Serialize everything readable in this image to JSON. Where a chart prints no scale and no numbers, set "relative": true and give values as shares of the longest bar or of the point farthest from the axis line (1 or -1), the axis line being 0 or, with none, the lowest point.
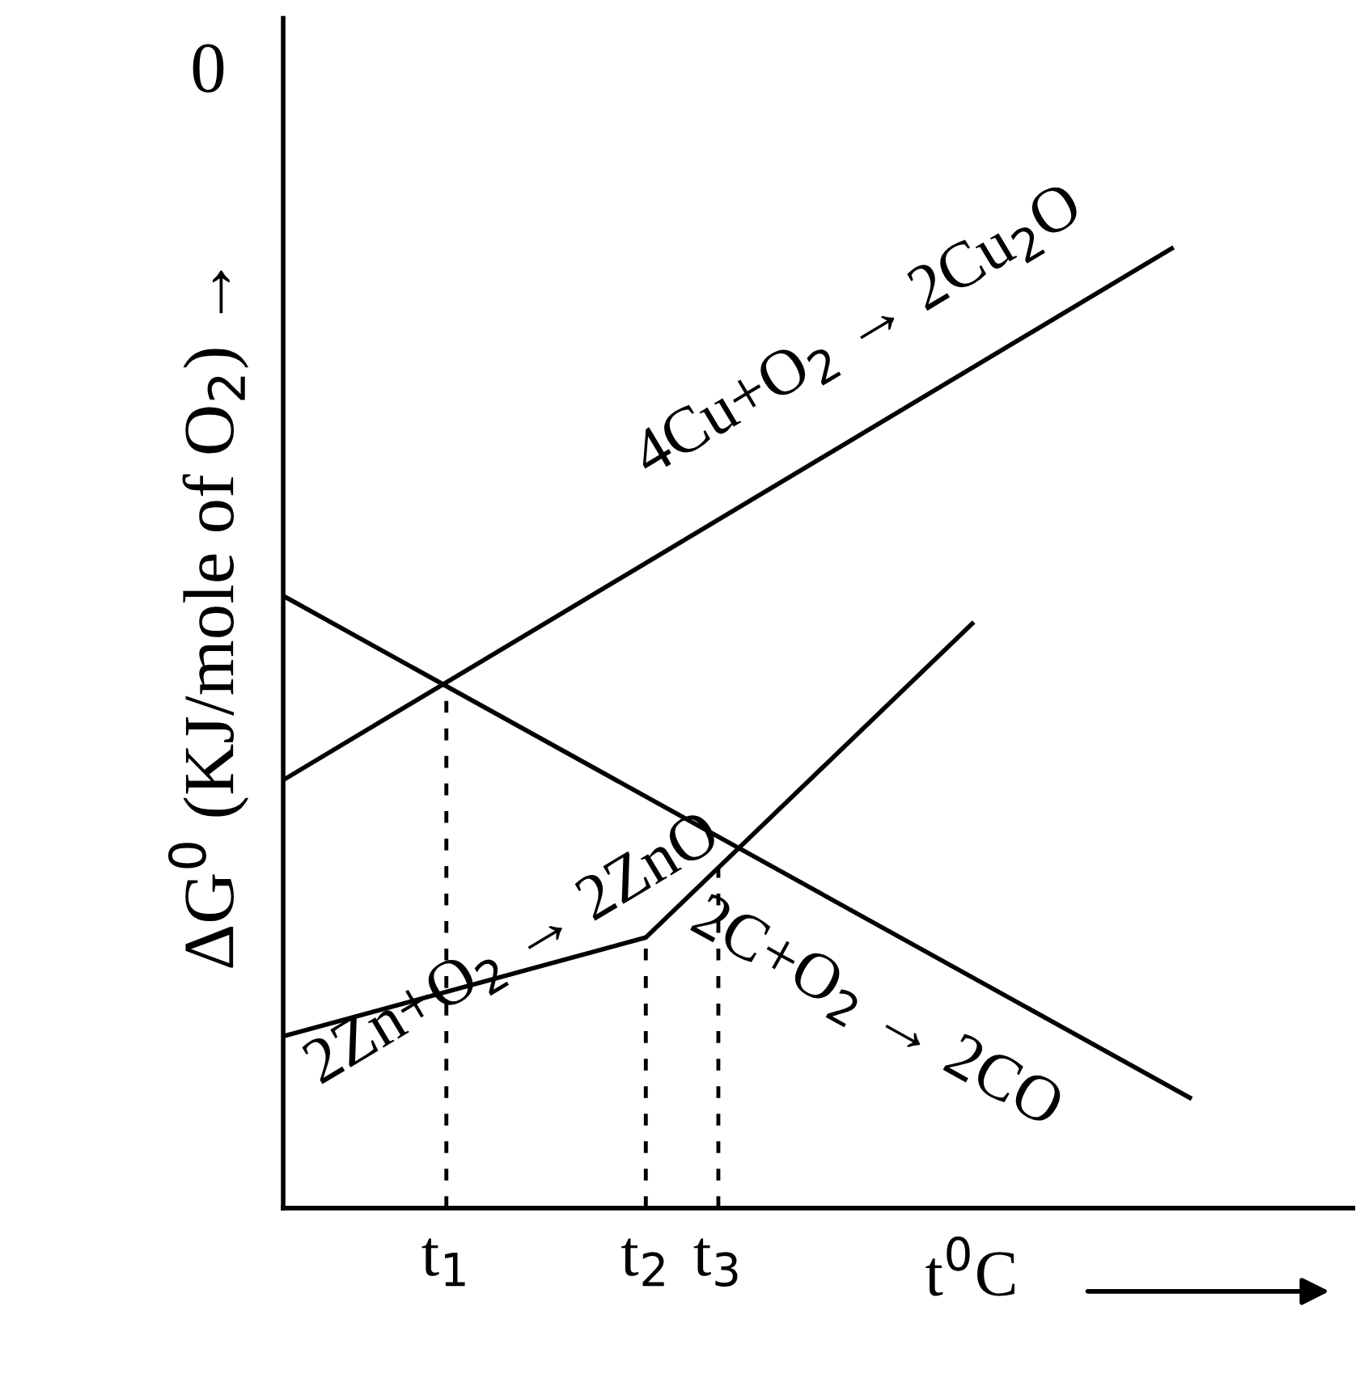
{
  "chart_data": {
    "type": "line",
    "relative": true,
    "ylabel": "ΔG$^{0}$ (KJ/mole of O$_{2}$) →",
    "xlabel": "t$^{0}$C",
    "categories": [
      null,
      null,
      null,
      null,
      null,
      null,
      null,
      null,
      null,
      "t$_{1}$",
      null,
      null,
      null,
      null,
      null,
      null,
      null,
      null,
      null,
      null,
      "t$_{2}$",
      null,
      null,
      null,
      "t$_{3}$",
      null,
      null,
      null,
      null,
      null,
      null,
      null,
      null,
      null,
      null,
      null,
      null,
      null,
      null,
      null,
      null,
      null,
      null,
      null,
      null,
      null,
      null,
      null,
      null,
      null,
      null,
      null,
      null,
      null,
      null,
      null,
      null,
      null,
      null,
      null
    ],
    "annotations": [
      "0"
    ],
    "marker": "none",
    "line_style": "solid",
    "ref_lines": [
      {
        "axis": "x",
        "value": "t$_{1}$",
        "line_style": "dashed",
        "color": "#000000"
      },
      {
        "axis": "x",
        "value": "t$_{2}$",
        "line_style": "dashed",
        "color": "#000000"
      },
      {
        "axis": "x",
        "value": "t$_{3}$",
        "line_style": "dashed",
        "color": "#000000"
      }
    ],
    "series": [
      {
        "name": "4Cu+O$_{2}$ → 2Cu$_{2}$O",
        "color": "#000000",
        "values": [
          0.446,
          null,
          null,
          null,
          null,
          null,
          null,
          null,
          null,
          null,
          null,
          null,
          null,
          null,
          null,
          null,
          null,
          null,
          null,
          null,
          null,
          null,
          null,
          null,
          null,
          null,
          null,
          null,
          null,
          null,
          null,
          null,
          null,
          null,
          null,
          null,
          null,
          null,
          null,
          null,
          null,
          null,
          null,
          null,
          null,
          null,
          null,
          null,
          null,
          1.0,
          null,
          null,
          null,
          null,
          null,
          null,
          null,
          null,
          null,
          null
        ]
      },
      {
        "name": "2C+O$_{2}$ → 2CO",
        "color": "#000000",
        "values": [
          0.638,
          null,
          null,
          null,
          null,
          null,
          null,
          null,
          null,
          null,
          null,
          null,
          null,
          null,
          null,
          null,
          null,
          null,
          null,
          null,
          null,
          null,
          null,
          null,
          null,
          null,
          null,
          null,
          null,
          null,
          null,
          null,
          null,
          null,
          null,
          null,
          null,
          null,
          null,
          null,
          null,
          null,
          null,
          null,
          null,
          null,
          null,
          null,
          null,
          null,
          0.115,
          null,
          null,
          null,
          null,
          null,
          null,
          null,
          null,
          null
        ]
      },
      {
        "name": "2Zn+O$_{2}$ → 2ZnO",
        "color": "#000000",
        "values": [
          0.179,
          null,
          null,
          null,
          null,
          null,
          null,
          null,
          null,
          null,
          null,
          null,
          null,
          null,
          null,
          null,
          null,
          null,
          null,
          null,
          0.282,
          null,
          null,
          null,
          null,
          null,
          null,
          null,
          null,
          null,
          null,
          null,
          null,
          null,
          null,
          null,
          null,
          null,
          0.609,
          null,
          null,
          null,
          null,
          null,
          null,
          null,
          null,
          null,
          null,
          null,
          null,
          null,
          null,
          null,
          null,
          null,
          null,
          null,
          null,
          null
        ]
      }
    ]
  }
}
